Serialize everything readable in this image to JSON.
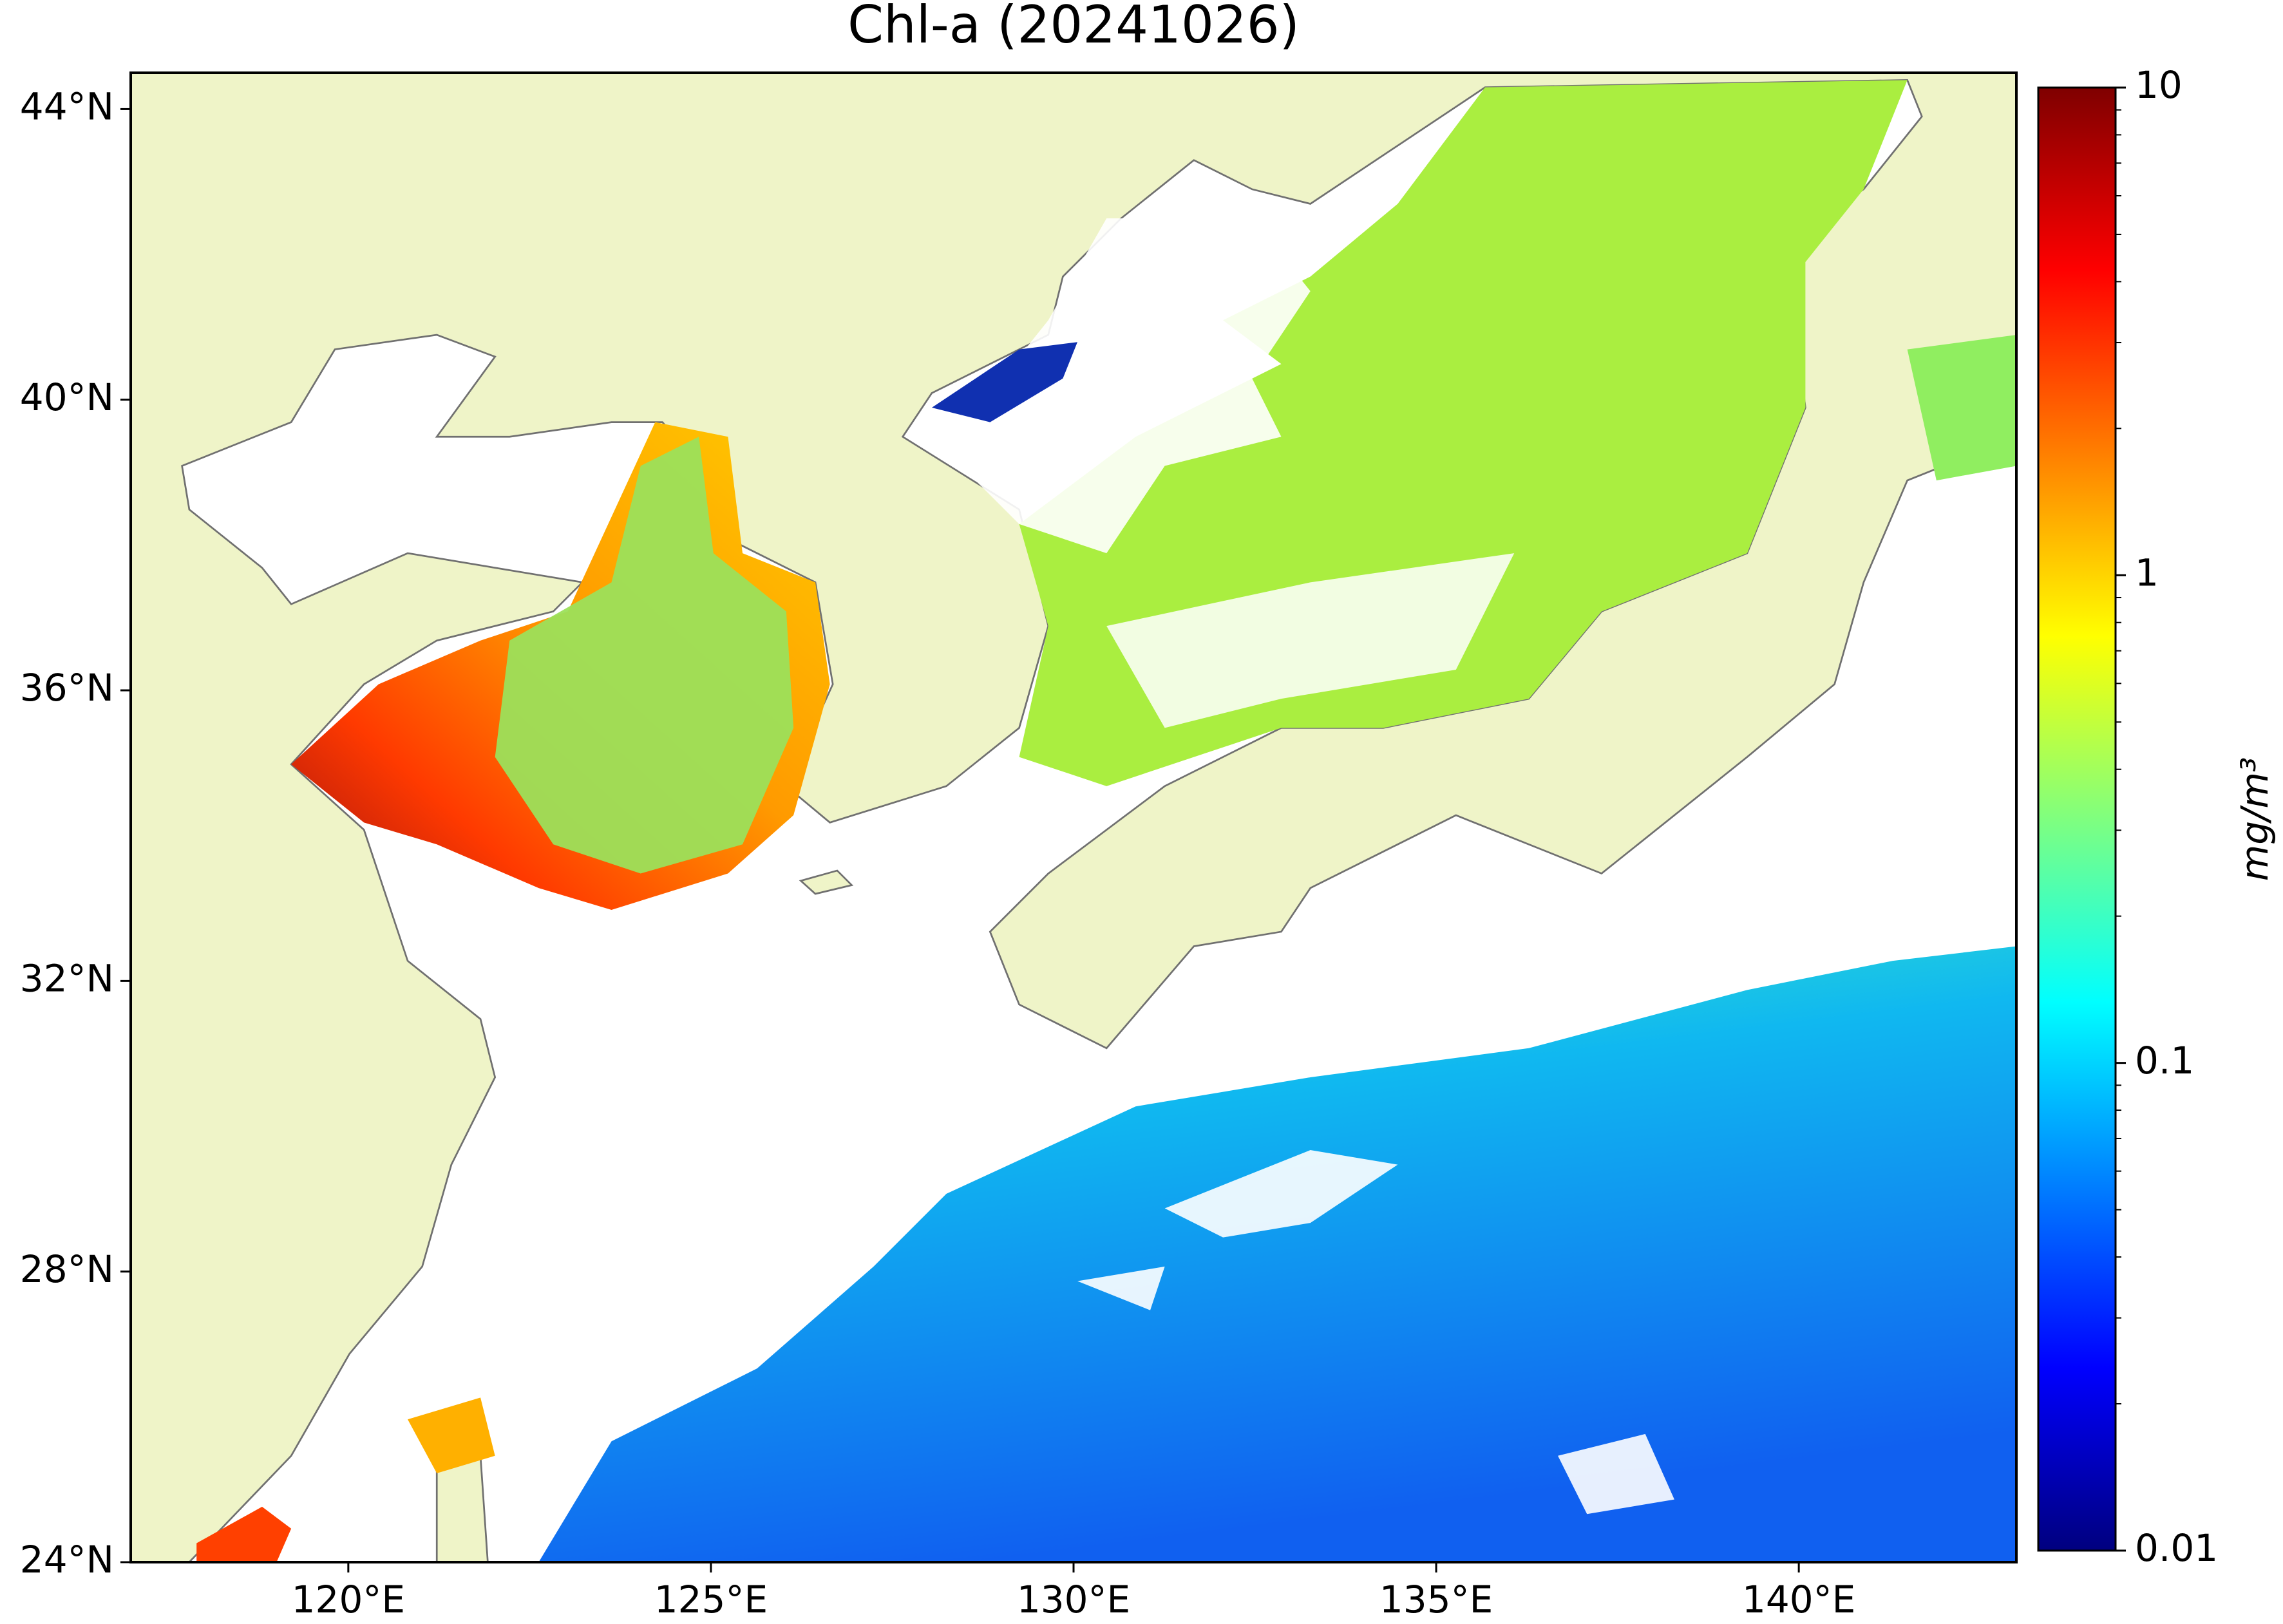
{
  "title": "Chl-a (20241026)",
  "map": {
    "projection": "plate carree",
    "land_color": "#eff4c8",
    "coast_color": "#707070",
    "xlim": [
      117,
      143
    ],
    "ylim": [
      24,
      44.5
    ],
    "xticks": [
      {
        "value": 120,
        "label": "120°E"
      },
      {
        "value": 125,
        "label": "125°E"
      },
      {
        "value": 130,
        "label": "130°E"
      },
      {
        "value": 135,
        "label": "135°E"
      },
      {
        "value": 140,
        "label": "140°E"
      }
    ],
    "yticks": [
      {
        "value": 24,
        "label": "24°N"
      },
      {
        "value": 28,
        "label": "28°N"
      },
      {
        "value": 32,
        "label": "32°N"
      },
      {
        "value": 36,
        "label": "36°N"
      },
      {
        "value": 40,
        "label": "40°N"
      },
      {
        "value": 44,
        "label": "44°N"
      }
    ]
  },
  "colorbar": {
    "label": "mg/m³",
    "scale": "log",
    "lim": [
      0.01,
      10
    ],
    "ticks": [
      0.01,
      0.1,
      1,
      10
    ],
    "colormap": [
      "#00007f",
      "#0000ff",
      "#007fff",
      "#00ffff",
      "#7fff7f",
      "#ffff00",
      "#ff7f00",
      "#ff0000",
      "#7f0000"
    ]
  }
}
